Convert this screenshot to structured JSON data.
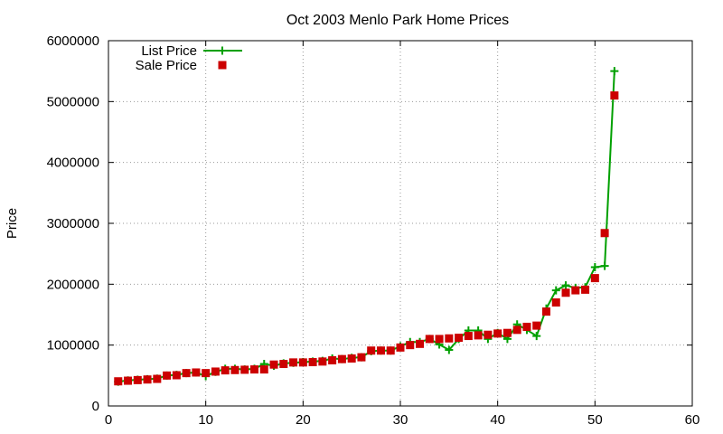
{
  "chart_data": {
    "type": "line",
    "title": "Oct 2003 Menlo Park Home Prices",
    "xlabel": "",
    "ylabel": "Price",
    "xlim": [
      0,
      60
    ],
    "ylim": [
      0,
      6000000
    ],
    "xticks": [
      0,
      10,
      20,
      30,
      40,
      50,
      60
    ],
    "yticks": [
      0,
      1000000,
      2000000,
      3000000,
      4000000,
      5000000,
      6000000
    ],
    "grid": true,
    "legend_position": "top-left",
    "series": [
      {
        "name": "List Price",
        "style": "line-with-plus-markers",
        "color": "#00a000",
        "x": [
          1,
          2,
          3,
          4,
          5,
          6,
          7,
          8,
          9,
          10,
          11,
          12,
          13,
          14,
          15,
          16,
          17,
          18,
          19,
          20,
          21,
          22,
          23,
          24,
          25,
          26,
          27,
          28,
          29,
          30,
          31,
          32,
          33,
          34,
          35,
          36,
          37,
          38,
          39,
          40,
          41,
          42,
          43,
          44,
          45,
          46,
          47,
          48,
          49,
          50,
          51,
          52
        ],
        "values": [
          400000,
          420000,
          430000,
          440000,
          450000,
          500000,
          510000,
          540000,
          550000,
          490000,
          560000,
          610000,
          610000,
          600000,
          610000,
          690000,
          660000,
          700000,
          710000,
          720000,
          730000,
          740000,
          780000,
          770000,
          790000,
          800000,
          900000,
          910000,
          910000,
          980000,
          1050000,
          1050000,
          1100000,
          1010000,
          920000,
          1100000,
          1240000,
          1240000,
          1100000,
          1200000,
          1100000,
          1340000,
          1250000,
          1150000,
          1600000,
          1900000,
          1980000,
          1940000,
          1950000,
          2280000,
          2300000,
          5500000
        ]
      },
      {
        "name": "Sale Price",
        "style": "square-markers",
        "color": "#cc0000",
        "x": [
          1,
          2,
          3,
          4,
          5,
          6,
          7,
          8,
          9,
          10,
          11,
          12,
          13,
          14,
          15,
          16,
          17,
          18,
          19,
          20,
          21,
          22,
          23,
          24,
          25,
          26,
          27,
          28,
          29,
          30,
          31,
          32,
          33,
          34,
          35,
          36,
          37,
          38,
          39,
          40,
          41,
          42,
          43,
          44,
          45,
          46,
          47,
          48,
          49,
          50,
          51,
          52
        ],
        "values": [
          405000,
          415000,
          425000,
          435000,
          445000,
          500000,
          505000,
          540000,
          550000,
          540000,
          565000,
          585000,
          590000,
          595000,
          600000,
          600000,
          680000,
          690000,
          715000,
          715000,
          720000,
          730000,
          750000,
          770000,
          780000,
          800000,
          910000,
          910000,
          910000,
          960000,
          1000000,
          1020000,
          1100000,
          1100000,
          1110000,
          1120000,
          1150000,
          1160000,
          1170000,
          1190000,
          1200000,
          1250000,
          1300000,
          1320000,
          1550000,
          1700000,
          1860000,
          1900000,
          1910000,
          2100000,
          2840000,
          5100000
        ]
      }
    ]
  }
}
